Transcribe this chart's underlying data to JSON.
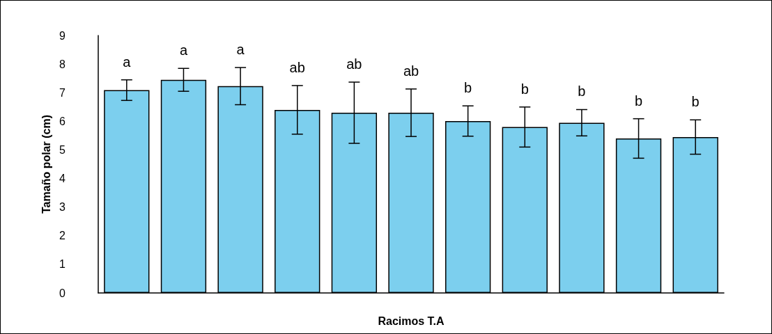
{
  "chart_data": {
    "type": "bar",
    "xlabel": "Racimos T.A",
    "ylabel": "Tamaño polar (cm)",
    "categories": [
      null,
      null,
      null,
      null,
      null,
      null,
      null,
      null,
      null,
      null,
      null
    ],
    "values": [
      7.09,
      7.45,
      7.23,
      6.4,
      6.3,
      6.3,
      6.01,
      5.8,
      5.95,
      5.4,
      5.45
    ],
    "errors": [
      0.36,
      0.4,
      0.65,
      0.85,
      1.07,
      0.83,
      0.53,
      0.7,
      0.46,
      0.69,
      0.6
    ],
    "color": "#7ccfee",
    "annotations": [
      "a",
      "a",
      "a",
      "ab",
      "ab",
      "ab",
      "b",
      "b",
      "b",
      "b",
      "b"
    ],
    "ylim": [
      0,
      9
    ],
    "yticks": [
      0,
      1,
      2,
      3,
      4,
      5,
      6,
      7,
      8,
      9
    ],
    "grid": false
  }
}
